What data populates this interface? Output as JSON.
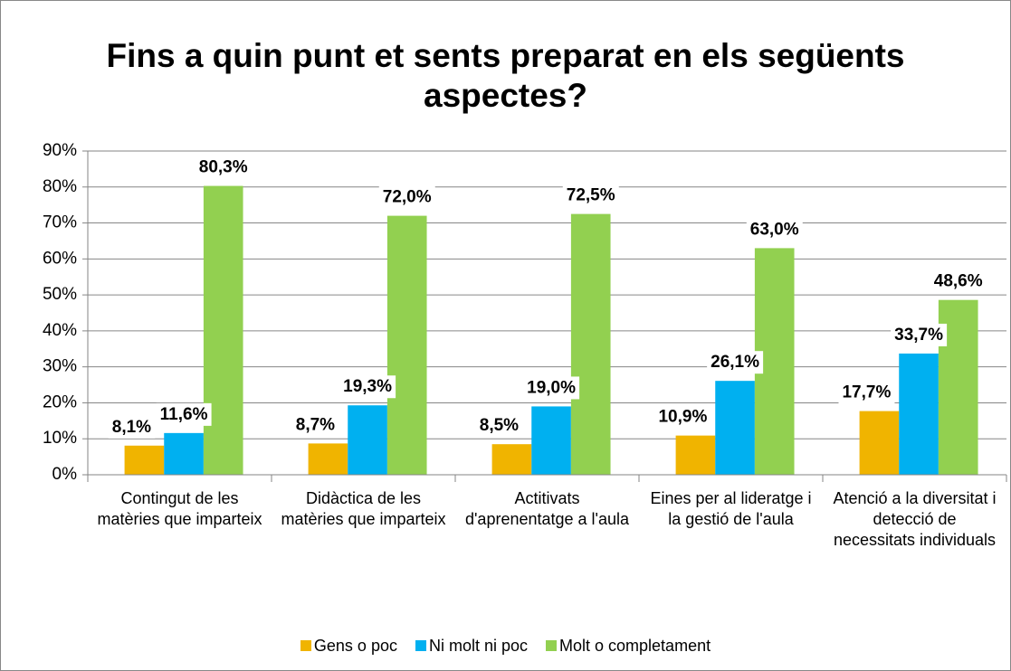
{
  "chart_data": {
    "type": "bar",
    "title": "Fins a quin punt et sents preparat en els següents aspectes?",
    "categories": [
      "Contingut de les matèries que imparteix",
      "Didàctica de les matèries que imparteix",
      "Actitivats d'aprenentatge a l'aula",
      "Eines per al lideratge i la gestió de l'aula",
      "Atenció a la diversitat i detecció de necessitats individuals"
    ],
    "series": [
      {
        "name": "Gens o poc",
        "color": "#f0b400",
        "values": [
          8.1,
          8.7,
          8.5,
          10.9,
          17.7
        ],
        "value_labels": [
          "8,1%",
          "8,7%",
          "8,5%",
          "10,9%",
          "17,7%"
        ]
      },
      {
        "name": "Ni molt ni poc",
        "color": "#00b0f0",
        "values": [
          11.6,
          19.3,
          19.0,
          26.1,
          33.7
        ],
        "value_labels": [
          "11,6%",
          "19,3%",
          "19,0%",
          "26,1%",
          "33,7%"
        ]
      },
      {
        "name": "Molt o completament",
        "color": "#92d050",
        "values": [
          80.3,
          72.0,
          72.5,
          63.0,
          48.6
        ],
        "value_labels": [
          "80,3%",
          "72,0%",
          "72,5%",
          "63,0%",
          "48,6%"
        ]
      }
    ],
    "ylim": [
      0,
      90
    ],
    "yticks": [
      {
        "value": 0,
        "label": "0%"
      },
      {
        "value": 10,
        "label": "10%"
      },
      {
        "value": 20,
        "label": "20%"
      },
      {
        "value": 30,
        "label": "30%"
      },
      {
        "value": 40,
        "label": "40%"
      },
      {
        "value": 50,
        "label": "50%"
      },
      {
        "value": 60,
        "label": "60%"
      },
      {
        "value": 70,
        "label": "70%"
      },
      {
        "value": 80,
        "label": "80%"
      },
      {
        "value": 90,
        "label": "90%"
      }
    ],
    "grid": true,
    "legend": "bottom"
  }
}
